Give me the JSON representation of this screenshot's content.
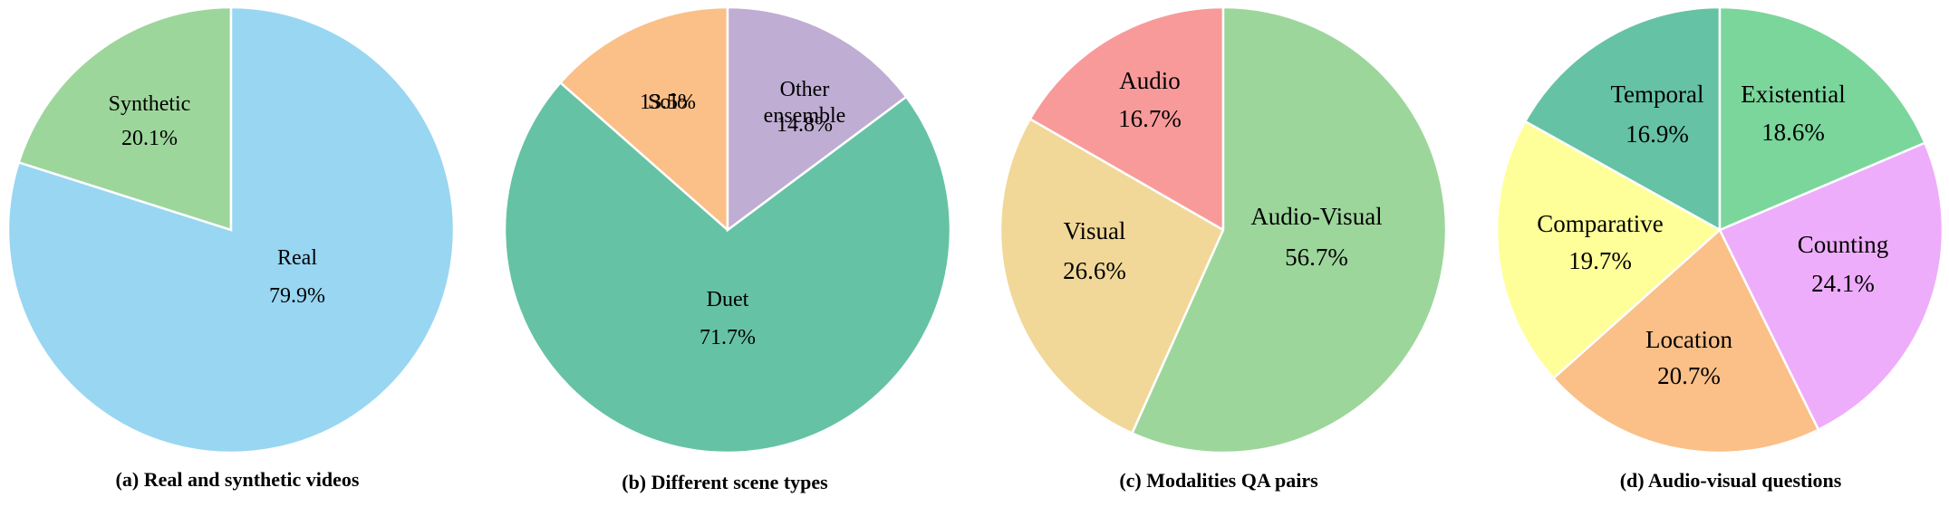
{
  "chart_data": [
    {
      "type": "pie",
      "caption": "(a) Real and synthetic videos",
      "slices": [
        {
          "label": "Synthetic",
          "value": 20.1,
          "pct_label": "20.1%",
          "color": "#9dd69b"
        },
        {
          "label": "Real",
          "value": 79.9,
          "pct_label": "79.9%",
          "color": "#99d6f2"
        }
      ]
    },
    {
      "type": "pie",
      "caption": "(b) Different scene types",
      "slices": [
        {
          "label": "Solo",
          "value": 13.5,
          "pct_label": "13.5%",
          "color": "#fbbf88"
        },
        {
          "label": "Duet",
          "value": 71.7,
          "pct_label": "71.7%",
          "color": "#66c2a5"
        },
        {
          "label": "Other ensemble",
          "value": 14.8,
          "pct_label": "14.8%",
          "color": "#bfadd3"
        }
      ]
    },
    {
      "type": "pie",
      "caption": "(c) Modalities QA pairs",
      "slices": [
        {
          "label": "Audio",
          "value": 16.7,
          "pct_label": "16.7%",
          "color": "#f99a9a"
        },
        {
          "label": "Visual",
          "value": 26.6,
          "pct_label": "26.6%",
          "color": "#f1d898"
        },
        {
          "label": "Audio-Visual",
          "value": 56.7,
          "pct_label": "56.7%",
          "color": "#9dd69b"
        }
      ]
    },
    {
      "type": "pie",
      "caption": "(d) Audio-visual questions",
      "slices": [
        {
          "label": "Temporal",
          "value": 16.9,
          "pct_label": "16.9%",
          "color": "#66c2a5"
        },
        {
          "label": "Comparative",
          "value": 19.7,
          "pct_label": "19.7%",
          "color": "#ffff99"
        },
        {
          "label": "Location",
          "value": 20.7,
          "pct_label": "20.7%",
          "color": "#fbbf88"
        },
        {
          "label": "Counting",
          "value": 24.1,
          "pct_label": "24.1%",
          "color": "#eeadfa"
        },
        {
          "label": "Existential",
          "value": 18.6,
          "pct_label": "18.6%",
          "color": "#7bd69b"
        }
      ]
    }
  ]
}
